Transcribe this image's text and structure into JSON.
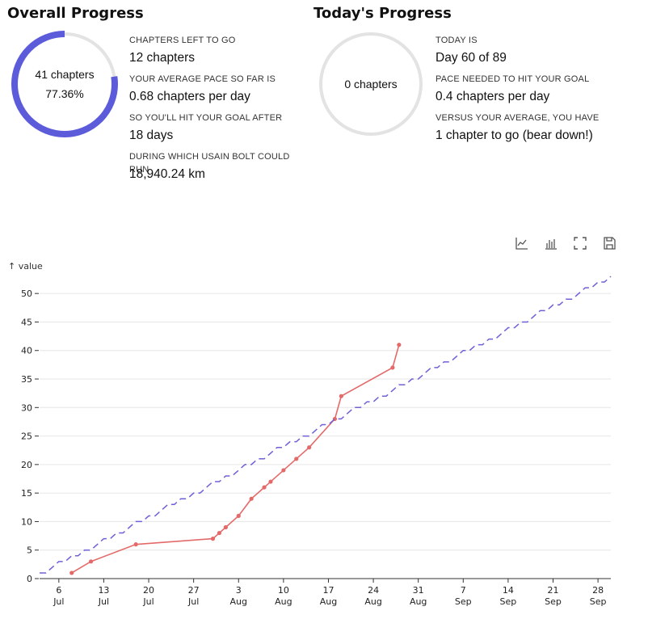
{
  "overall": {
    "title": "Overall Progress",
    "ring_line1": "41 chapters",
    "ring_line2": "77.36%",
    "ring_fraction": 0.7736,
    "stats": [
      {
        "label": "Chapters left to go",
        "value": "12 chapters"
      },
      {
        "label": "Your average pace so far is",
        "value": "0.68 chapters per day"
      },
      {
        "label": "So you'll hit your goal after",
        "value": "18 days"
      },
      {
        "label": "During which Usain Bolt could run",
        "value": "18,940.24 km"
      }
    ]
  },
  "today": {
    "title": "Today's Progress",
    "ring_line1": "0 chapters",
    "ring_fraction": 0,
    "stats": [
      {
        "label": "Today is",
        "value": "Day 60 of 89"
      },
      {
        "label": "Pace needed to hit your goal",
        "value": "0.4 chapters per day"
      },
      {
        "label": "Versus your average, you have",
        "value": "1 chapter to go (bear down!)"
      }
    ]
  },
  "toolbar": {
    "icons": [
      "line-chart-icon",
      "bar-chart-icon",
      "fullscreen-icon",
      "save-icon"
    ]
  },
  "colors": {
    "accent": "#5c5cdb",
    "ring_track": "#e3e3e3",
    "actual": "#e46a6a",
    "target": "#6e60d6",
    "grid": "#e6e6e6",
    "axis": "#333333"
  },
  "chart_data": {
    "type": "line",
    "ylabel": "↑ value",
    "ylim": [
      0,
      53
    ],
    "yticks": [
      0,
      5,
      10,
      15,
      20,
      25,
      30,
      35,
      40,
      45,
      50
    ],
    "xlim": [
      "2025-07-03",
      "2025-09-30"
    ],
    "xticks": [
      {
        "date": "2025-07-06",
        "day": "6",
        "month": "Jul"
      },
      {
        "date": "2025-07-13",
        "day": "13",
        "month": "Jul"
      },
      {
        "date": "2025-07-20",
        "day": "20",
        "month": "Jul"
      },
      {
        "date": "2025-07-27",
        "day": "27",
        "month": "Jul"
      },
      {
        "date": "2025-08-03",
        "day": "3",
        "month": "Aug"
      },
      {
        "date": "2025-08-10",
        "day": "10",
        "month": "Aug"
      },
      {
        "date": "2025-08-17",
        "day": "17",
        "month": "Aug"
      },
      {
        "date": "2025-08-24",
        "day": "24",
        "month": "Aug"
      },
      {
        "date": "2025-08-31",
        "day": "31",
        "month": "Aug"
      },
      {
        "date": "2025-09-07",
        "day": "7",
        "month": "Sep"
      },
      {
        "date": "2025-09-14",
        "day": "14",
        "month": "Sep"
      },
      {
        "date": "2025-09-21",
        "day": "21",
        "month": "Sep"
      },
      {
        "date": "2025-09-28",
        "day": "28",
        "month": "Sep"
      }
    ],
    "grid": true,
    "series": [
      {
        "role": "actual",
        "style": "solid",
        "markers": true,
        "x": [
          "2025-07-08",
          "2025-07-11",
          "2025-07-18",
          "2025-07-30",
          "2025-07-31",
          "2025-08-01",
          "2025-08-03",
          "2025-08-05",
          "2025-08-07",
          "2025-08-08",
          "2025-08-10",
          "2025-08-12",
          "2025-08-14",
          "2025-08-18",
          "2025-08-19",
          "2025-08-27",
          "2025-08-28"
        ],
        "values": [
          1,
          3,
          6,
          7,
          8,
          9,
          11,
          14,
          16,
          17,
          19,
          21,
          23,
          28,
          32,
          37,
          41
        ]
      },
      {
        "role": "target",
        "style": "dashed",
        "markers": false,
        "x": [
          "2025-07-03",
          "2025-09-30"
        ],
        "values": [
          0.8,
          53
        ]
      }
    ]
  }
}
